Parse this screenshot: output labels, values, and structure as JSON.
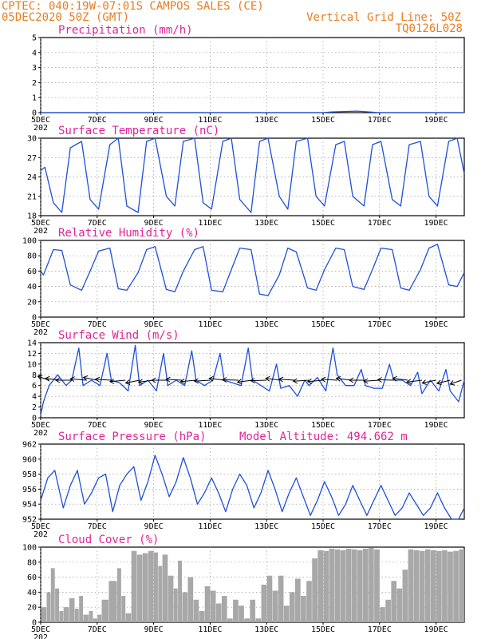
{
  "header": {
    "line1": "CPTEC:  040:19W-07:01S  CAMPOS SALES (CE)",
    "line2": "05DEC2020 50Z (GMT)",
    "grid_note": "Vertical Grid Line: 50Z",
    "code": "TQ0126L028"
  },
  "colors": {
    "series": "#1f4fdc",
    "titles": "#e0249a",
    "header": "#e67e22",
    "cloud": "#a8a8a8"
  },
  "x_axis": {
    "day_start": 5,
    "day_end": 20,
    "tick_days": [
      5,
      7,
      9,
      11,
      13,
      15,
      17,
      19
    ],
    "tick_labels": [
      "5DEC",
      "7DEC",
      "9DEC",
      "11DEC",
      "13DEC",
      "15DEC",
      "17DEC",
      "19DEC"
    ],
    "year_stub": "202"
  },
  "chart_data": [
    {
      "type": "bar",
      "title": "Precipitation (mm/h)",
      "ylim": [
        0,
        5
      ],
      "yticks": [
        0,
        1,
        2,
        3,
        4,
        5
      ],
      "grid": true,
      "x_days": [
        5.0,
        7.0,
        9.0,
        11.0,
        13.0,
        15.0,
        15.3,
        16.2,
        17.0,
        19.0,
        20.0
      ],
      "values": [
        0,
        0,
        0,
        0,
        0,
        0,
        0.05,
        0.1,
        0,
        0,
        0
      ]
    },
    {
      "type": "line",
      "title": "Surface Temperature (nC)",
      "ylim": [
        18,
        30
      ],
      "yticks": [
        18,
        21,
        24,
        27,
        30
      ],
      "grid": true,
      "x_days": [
        5.0,
        5.15,
        5.45,
        5.75,
        6.05,
        6.45,
        6.75,
        7.05,
        7.45,
        7.75,
        8.05,
        8.45,
        8.75,
        9.05,
        9.45,
        9.75,
        10.05,
        10.45,
        10.75,
        11.05,
        11.45,
        11.75,
        12.05,
        12.45,
        12.75,
        13.05,
        13.45,
        13.75,
        14.05,
        14.45,
        14.75,
        15.05,
        15.45,
        15.75,
        16.05,
        16.45,
        16.75,
        17.05,
        17.45,
        17.75,
        18.05,
        18.45,
        18.75,
        19.05,
        19.45,
        19.75,
        20.0
      ],
      "values": [
        25,
        25.5,
        20,
        18.5,
        28.5,
        29.5,
        20.5,
        19,
        29,
        30,
        19.5,
        18.5,
        29.5,
        30,
        21,
        19.5,
        29.5,
        30,
        20,
        19,
        29.5,
        30,
        20.5,
        18.5,
        29.5,
        30,
        21,
        19,
        29.5,
        30,
        21,
        19.5,
        29,
        29.5,
        21,
        19.5,
        29,
        29.5,
        20.5,
        19.5,
        29,
        29.5,
        21,
        19.5,
        29.5,
        30,
        24.5
      ]
    },
    {
      "type": "line",
      "title": "Relative Humidity (%)",
      "ylim": [
        0,
        100
      ],
      "yticks": [
        0,
        20,
        40,
        60,
        80,
        100
      ],
      "grid": true,
      "x_days": [
        5.0,
        5.1,
        5.45,
        5.75,
        6.05,
        6.45,
        6.75,
        7.05,
        7.45,
        7.75,
        8.05,
        8.45,
        8.75,
        9.05,
        9.45,
        9.75,
        10.05,
        10.45,
        10.75,
        11.05,
        11.45,
        11.75,
        12.05,
        12.45,
        12.75,
        13.05,
        13.45,
        13.75,
        14.05,
        14.45,
        14.75,
        15.05,
        15.45,
        15.75,
        16.05,
        16.45,
        16.75,
        17.05,
        17.45,
        17.75,
        18.05,
        18.45,
        18.75,
        19.05,
        19.45,
        19.75,
        20.0
      ],
      "values": [
        60,
        55,
        88,
        87,
        42,
        35,
        60,
        86,
        90,
        37,
        35,
        58,
        88,
        92,
        36,
        33,
        60,
        88,
        92,
        35,
        33,
        62,
        90,
        88,
        30,
        28,
        55,
        90,
        85,
        38,
        35,
        62,
        90,
        88,
        40,
        36,
        62,
        90,
        88,
        38,
        35,
        62,
        90,
        95,
        42,
        40,
        58
      ]
    },
    {
      "type": "line",
      "title": "Surface Wind (m/s)",
      "ylim": [
        0,
        14
      ],
      "yticks": [
        0,
        2,
        4,
        6,
        8,
        10,
        12,
        14
      ],
      "grid": true,
      "x_days": [
        5.0,
        5.1,
        5.3,
        5.6,
        5.9,
        6.1,
        6.35,
        6.5,
        6.8,
        7.1,
        7.35,
        7.5,
        7.8,
        8.1,
        8.35,
        8.5,
        8.8,
        9.1,
        9.35,
        9.5,
        9.8,
        10.1,
        10.35,
        10.5,
        10.8,
        11.1,
        11.35,
        11.5,
        11.8,
        12.1,
        12.35,
        12.5,
        12.8,
        13.1,
        13.35,
        13.5,
        13.8,
        14.1,
        14.35,
        14.5,
        14.8,
        15.1,
        15.35,
        15.5,
        15.8,
        16.1,
        16.35,
        16.5,
        16.8,
        17.1,
        17.35,
        17.5,
        17.8,
        18.1,
        18.35,
        18.5,
        18.8,
        19.1,
        19.35,
        19.5,
        19.8,
        20.0
      ],
      "values": [
        0.5,
        3,
        6,
        8,
        6,
        7,
        13,
        6,
        7,
        6,
        12,
        7,
        6.5,
        5,
        13.5,
        6,
        7,
        5,
        12,
        6,
        7,
        6,
        12.5,
        7,
        6,
        7,
        12,
        7,
        6.5,
        6,
        13,
        7,
        6,
        5,
        10,
        5.5,
        6,
        4,
        7,
        6,
        7.5,
        5,
        13,
        8,
        6,
        6,
        9,
        6,
        5.5,
        5.5,
        10,
        7,
        7,
        6,
        8.5,
        4.5,
        7,
        5,
        9,
        5,
        3,
        7
      ],
      "vectors_x_days": [
        5.3,
        5.7,
        6.1,
        6.6,
        7.0,
        7.5,
        8.0,
        8.5,
        9.0,
        9.5,
        10.0,
        10.5,
        11.0,
        11.5,
        12.0,
        12.5,
        13.0,
        13.5,
        14.0,
        14.5,
        15.0,
        15.5,
        16.0,
        16.5,
        17.0,
        17.5,
        18.0,
        18.5,
        19.0,
        19.5,
        19.9
      ],
      "vectors_dir_deg": [
        135,
        110,
        90,
        105,
        120,
        100,
        75,
        60,
        70,
        90,
        100,
        75,
        80,
        110,
        95,
        70,
        85,
        110,
        100,
        80,
        75,
        100,
        110,
        90,
        80,
        95,
        110,
        70,
        60,
        55,
        45
      ]
    },
    {
      "type": "line",
      "title": "Surface Pressure (hPa)",
      "subtitle": "Model Altitude: 494.662 m",
      "ylim": [
        952,
        962
      ],
      "yticks": [
        952,
        954,
        956,
        958,
        960,
        962
      ],
      "grid": true,
      "x_days": [
        5.0,
        5.25,
        5.5,
        5.8,
        6.05,
        6.3,
        6.55,
        6.8,
        7.05,
        7.3,
        7.55,
        7.8,
        8.05,
        8.3,
        8.55,
        8.8,
        9.05,
        9.3,
        9.55,
        9.8,
        10.05,
        10.3,
        10.55,
        10.8,
        11.05,
        11.3,
        11.55,
        11.8,
        12.05,
        12.3,
        12.55,
        12.8,
        13.05,
        13.3,
        13.55,
        13.8,
        14.05,
        14.3,
        14.55,
        14.8,
        15.05,
        15.3,
        15.55,
        15.8,
        16.05,
        16.3,
        16.55,
        16.8,
        17.05,
        17.3,
        17.55,
        17.8,
        18.05,
        18.3,
        18.55,
        18.8,
        19.05,
        19.3,
        19.55,
        19.8,
        20.0
      ],
      "values": [
        954.5,
        957.5,
        958.5,
        953.5,
        956.5,
        958.5,
        954,
        955.5,
        957.5,
        958,
        953,
        956.5,
        958,
        959,
        954.5,
        957,
        960.5,
        958,
        955,
        957,
        960.2,
        957.5,
        954,
        955.5,
        957.5,
        955.5,
        953,
        956,
        958,
        956.5,
        953.5,
        955.5,
        958.5,
        956,
        953,
        955.5,
        957.5,
        955,
        952.5,
        954.5,
        957,
        955,
        952.5,
        954,
        956.5,
        954.5,
        952.5,
        954.5,
        956.5,
        954.5,
        952.5,
        953.5,
        955.5,
        954,
        952.5,
        953.5,
        955.5,
        953.5,
        952,
        952,
        953.5
      ]
    },
    {
      "type": "bar",
      "title": "Cloud Cover (%)",
      "ylim": [
        0,
        100
      ],
      "yticks": [
        0,
        20,
        40,
        60,
        80,
        100
      ],
      "grid": true,
      "x_days": [
        5.0,
        5.2,
        5.35,
        5.5,
        5.65,
        5.8,
        6.0,
        6.2,
        6.35,
        6.5,
        6.7,
        6.85,
        7.0,
        7.15,
        7.4,
        7.7,
        7.85,
        8.0,
        8.2,
        8.4,
        8.6,
        8.8,
        9.0,
        9.15,
        9.3,
        9.5,
        9.7,
        9.85,
        10.0,
        10.2,
        10.4,
        10.6,
        10.8,
        11.0,
        11.2,
        11.4,
        11.6,
        11.8,
        12.0,
        12.2,
        12.4,
        12.6,
        12.8,
        13.0,
        13.2,
        13.4,
        13.6,
        13.8,
        14.0,
        14.2,
        14.4,
        14.6,
        14.8,
        15.0,
        15.2,
        15.4,
        15.6,
        15.8,
        16.0,
        16.2,
        16.4,
        16.6,
        16.8,
        17.0,
        17.2,
        17.4,
        17.6,
        17.8,
        18.0,
        18.2,
        18.4,
        18.6,
        18.8,
        19.0,
        19.2,
        19.4,
        19.6,
        19.8
      ],
      "values": [
        20,
        40,
        72,
        45,
        15,
        20,
        32,
        18,
        35,
        10,
        15,
        5,
        10,
        30,
        55,
        72,
        35,
        12,
        95,
        90,
        92,
        95,
        93,
        75,
        90,
        62,
        45,
        82,
        40,
        60,
        30,
        15,
        48,
        42,
        25,
        35,
        5,
        30,
        22,
        5,
        30,
        5,
        50,
        62,
        42,
        62,
        22,
        40,
        58,
        35,
        55,
        85,
        96,
        95,
        98,
        97,
        96,
        98,
        97,
        96,
        98,
        99,
        97,
        20,
        30,
        55,
        45,
        70,
        97,
        96,
        95,
        97,
        96,
        95,
        96,
        94,
        95,
        97
      ]
    }
  ]
}
